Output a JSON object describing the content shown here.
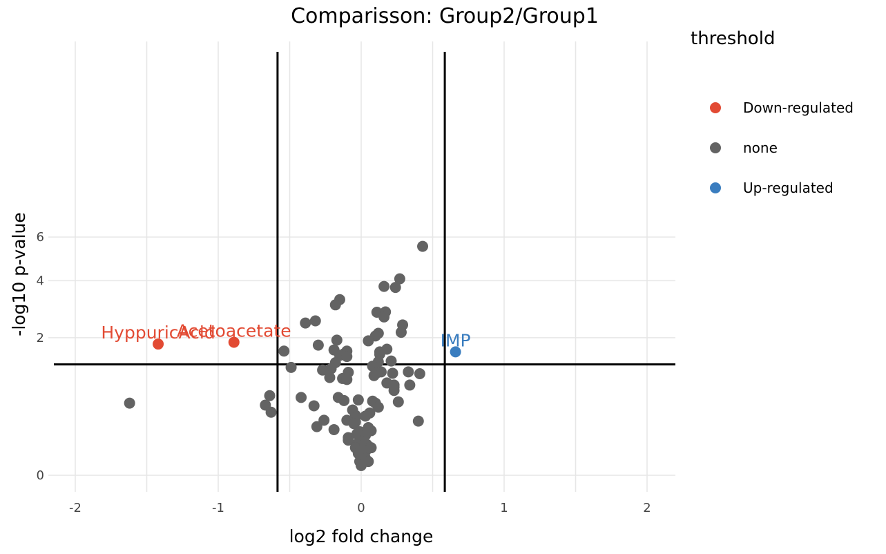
{
  "chart_data": {
    "type": "scatter",
    "title": "Comparisson: Group2/Group1",
    "xlabel": "log2 fold change",
    "ylabel": "-log10 p-value",
    "xlim": [
      -2.2,
      2.2
    ],
    "ylim": [
      -0.1,
      6.35
    ],
    "y_scale": "sqrt",
    "xticks": [
      -2,
      -1,
      0,
      1,
      2
    ],
    "xtick_labels": [
      "-2",
      "-1",
      "0",
      "1",
      "2"
    ],
    "yticks": [
      0,
      2,
      4,
      6
    ],
    "ytick_labels": [
      "0",
      "2",
      "4",
      "6"
    ],
    "grid": true,
    "thresholds": {
      "vertical": [
        -0.585,
        0.585
      ],
      "horizontal": 1.3
    },
    "legend": {
      "title": "threshold",
      "position": "right",
      "entries": [
        {
          "label": "Down-regulated",
          "color": "#E24A33"
        },
        {
          "label": "none",
          "color": "#636363"
        },
        {
          "label": "Up-regulated",
          "color": "#3A7DBF"
        }
      ]
    },
    "series": [
      {
        "name": "Down-regulated",
        "color": "#E24A33",
        "points": [
          {
            "x": -1.42,
            "y": 1.82,
            "label": "HyppuricAcid"
          },
          {
            "x": -0.89,
            "y": 1.87,
            "label": "Acetoacetate"
          }
        ]
      },
      {
        "name": "none",
        "color": "#636363",
        "points": [
          {
            "x": 0.43,
            "y": 5.54
          },
          {
            "x": 0.27,
            "y": 4.08
          },
          {
            "x": 0.16,
            "y": 3.77
          },
          {
            "x": 0.24,
            "y": 3.73
          },
          {
            "x": -0.15,
            "y": 3.26
          },
          {
            "x": -0.18,
            "y": 3.07
          },
          {
            "x": 0.11,
            "y": 2.81
          },
          {
            "x": 0.17,
            "y": 2.82
          },
          {
            "x": 0.16,
            "y": 2.65
          },
          {
            "x": -0.32,
            "y": 2.52
          },
          {
            "x": -0.39,
            "y": 2.45
          },
          {
            "x": 0.29,
            "y": 2.39
          },
          {
            "x": 0.28,
            "y": 2.16
          },
          {
            "x": 0.12,
            "y": 2.13
          },
          {
            "x": 0.1,
            "y": 2.05
          },
          {
            "x": -0.17,
            "y": 1.93
          },
          {
            "x": 0.05,
            "y": 1.91
          },
          {
            "x": -0.3,
            "y": 1.79
          },
          {
            "x": 0.18,
            "y": 1.68
          },
          {
            "x": -0.19,
            "y": 1.66
          },
          {
            "x": -0.54,
            "y": 1.63
          },
          {
            "x": -0.1,
            "y": 1.63
          },
          {
            "x": 0.13,
            "y": 1.61
          },
          {
            "x": -0.12,
            "y": 1.56
          },
          {
            "x": 0.13,
            "y": 1.55
          },
          {
            "x": -0.15,
            "y": 1.52
          },
          {
            "x": -0.1,
            "y": 1.49
          },
          {
            "x": 0.21,
            "y": 1.38
          },
          {
            "x": 0.12,
            "y": 1.36
          },
          {
            "x": -0.18,
            "y": 1.34
          },
          {
            "x": 0.08,
            "y": 1.26
          },
          {
            "x": -0.49,
            "y": 1.23
          },
          {
            "x": -0.21,
            "y": 1.2
          },
          {
            "x": -0.27,
            "y": 1.17
          },
          {
            "x": 0.33,
            "y": 1.13
          },
          {
            "x": 0.14,
            "y": 1.13
          },
          {
            "x": -0.09,
            "y": 1.12
          },
          {
            "x": 0.11,
            "y": 1.11
          },
          {
            "x": 0.22,
            "y": 1.1
          },
          {
            "x": 0.41,
            "y": 1.09
          },
          {
            "x": 0.09,
            "y": 1.05
          },
          {
            "x": -0.22,
            "y": 1.01
          },
          {
            "x": -0.13,
            "y": 0.99
          },
          {
            "x": -0.1,
            "y": 0.97
          },
          {
            "x": 0.18,
            "y": 0.9
          },
          {
            "x": 0.23,
            "y": 0.86
          },
          {
            "x": 0.34,
            "y": 0.86
          },
          {
            "x": 0.23,
            "y": 0.82
          },
          {
            "x": 0.23,
            "y": 0.76
          },
          {
            "x": -0.64,
            "y": 0.67
          },
          {
            "x": -0.42,
            "y": 0.64
          },
          {
            "x": -0.16,
            "y": 0.64
          },
          {
            "x": -1.62,
            "y": 0.55
          },
          {
            "x": -0.12,
            "y": 0.59
          },
          {
            "x": -0.02,
            "y": 0.6
          },
          {
            "x": 0.08,
            "y": 0.58
          },
          {
            "x": 0.26,
            "y": 0.57
          },
          {
            "x": 0.1,
            "y": 0.55
          },
          {
            "x": -0.67,
            "y": 0.52
          },
          {
            "x": -0.33,
            "y": 0.51
          },
          {
            "x": 0.12,
            "y": 0.49
          },
          {
            "x": -0.06,
            "y": 0.45
          },
          {
            "x": -0.63,
            "y": 0.42
          },
          {
            "x": 0.06,
            "y": 0.41
          },
          {
            "x": -0.04,
            "y": 0.38
          },
          {
            "x": 0.03,
            "y": 0.37
          },
          {
            "x": -0.04,
            "y": 0.35
          },
          {
            "x": -0.26,
            "y": 0.32
          },
          {
            "x": -0.1,
            "y": 0.32
          },
          {
            "x": 0.4,
            "y": 0.31
          },
          {
            "x": -0.04,
            "y": 0.3
          },
          {
            "x": -0.05,
            "y": 0.28
          },
          {
            "x": -0.31,
            "y": 0.25
          },
          {
            "x": 0.05,
            "y": 0.24
          },
          {
            "x": -0.19,
            "y": 0.22
          },
          {
            "x": 0.07,
            "y": 0.21
          },
          {
            "x": -0.01,
            "y": 0.2
          },
          {
            "x": 0.02,
            "y": 0.19
          },
          {
            "x": -0.03,
            "y": 0.18
          },
          {
            "x": 0.03,
            "y": 0.17
          },
          {
            "x": -0.09,
            "y": 0.15
          },
          {
            "x": -0.09,
            "y": 0.13
          },
          {
            "x": 0.02,
            "y": 0.12
          },
          {
            "x": -0.02,
            "y": 0.11
          },
          {
            "x": 0.04,
            "y": 0.1
          },
          {
            "x": 0.0,
            "y": 0.09
          },
          {
            "x": -0.04,
            "y": 0.08
          },
          {
            "x": 0.07,
            "y": 0.08
          },
          {
            "x": 0.01,
            "y": 0.07
          },
          {
            "x": 0.03,
            "y": 0.06
          },
          {
            "x": -0.02,
            "y": 0.05
          },
          {
            "x": 0.0,
            "y": 0.04
          },
          {
            "x": 0.03,
            "y": 0.03
          },
          {
            "x": -0.01,
            "y": 0.02
          },
          {
            "x": 0.05,
            "y": 0.02
          },
          {
            "x": 0.0,
            "y": 0.01
          }
        ]
      },
      {
        "name": "Up-regulated",
        "color": "#3A7DBF",
        "points": [
          {
            "x": 0.66,
            "y": 1.61,
            "label": "IMP"
          }
        ]
      }
    ]
  }
}
